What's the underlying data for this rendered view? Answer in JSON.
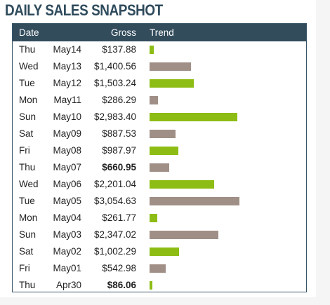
{
  "title": "DAILY SALES SNAPSHOT",
  "headers": {
    "date": "Date",
    "gross": "Gross",
    "trend": "Trend"
  },
  "colors": {
    "green": "#8dbd14",
    "brown": "#a08f86",
    "header_bg": "#324c5c",
    "title": "#2f4b5c"
  },
  "chart_data": {
    "type": "bar",
    "orientation": "horizontal",
    "title": "DAILY SALES SNAPSHOT",
    "columns": [
      "Date",
      "Gross",
      "Trend"
    ],
    "rows": [
      {
        "day": "Thu",
        "date": "May14",
        "gross": "$137.88",
        "value": 137.88,
        "color": "green",
        "bold": false
      },
      {
        "day": "Wed",
        "date": "May13",
        "gross": "$1,400.56",
        "value": 1400.56,
        "color": "brown",
        "bold": false
      },
      {
        "day": "Tue",
        "date": "May12",
        "gross": "$1,503.24",
        "value": 1503.24,
        "color": "green",
        "bold": false
      },
      {
        "day": "Mon",
        "date": "May11",
        "gross": "$286.29",
        "value": 286.29,
        "color": "brown",
        "bold": false
      },
      {
        "day": "Sun",
        "date": "May10",
        "gross": "$2,983.40",
        "value": 2983.4,
        "color": "green",
        "bold": false
      },
      {
        "day": "Sat",
        "date": "May09",
        "gross": "$887.53",
        "value": 887.53,
        "color": "brown",
        "bold": false
      },
      {
        "day": "Fri",
        "date": "May08",
        "gross": "$987.97",
        "value": 987.97,
        "color": "green",
        "bold": false
      },
      {
        "day": "Thu",
        "date": "May07",
        "gross": "$660.95",
        "value": 660.95,
        "color": "brown",
        "bold": true
      },
      {
        "day": "Wed",
        "date": "May06",
        "gross": "$2,201.04",
        "value": 2201.04,
        "color": "green",
        "bold": false
      },
      {
        "day": "Tue",
        "date": "May05",
        "gross": "$3,054.63",
        "value": 3054.63,
        "color": "brown",
        "bold": false
      },
      {
        "day": "Mon",
        "date": "May04",
        "gross": "$261.77",
        "value": 261.77,
        "color": "green",
        "bold": false
      },
      {
        "day": "Sun",
        "date": "May03",
        "gross": "$2,347.02",
        "value": 2347.02,
        "color": "brown",
        "bold": false
      },
      {
        "day": "Sat",
        "date": "May02",
        "gross": "$1,002.29",
        "value": 1002.29,
        "color": "green",
        "bold": false
      },
      {
        "day": "Fri",
        "date": "May01",
        "gross": "$542.98",
        "value": 542.98,
        "color": "brown",
        "bold": false
      },
      {
        "day": "Thu",
        "date": "Apr30",
        "gross": "$86.06",
        "value": 86.06,
        "color": "green",
        "bold": true
      }
    ]
  }
}
